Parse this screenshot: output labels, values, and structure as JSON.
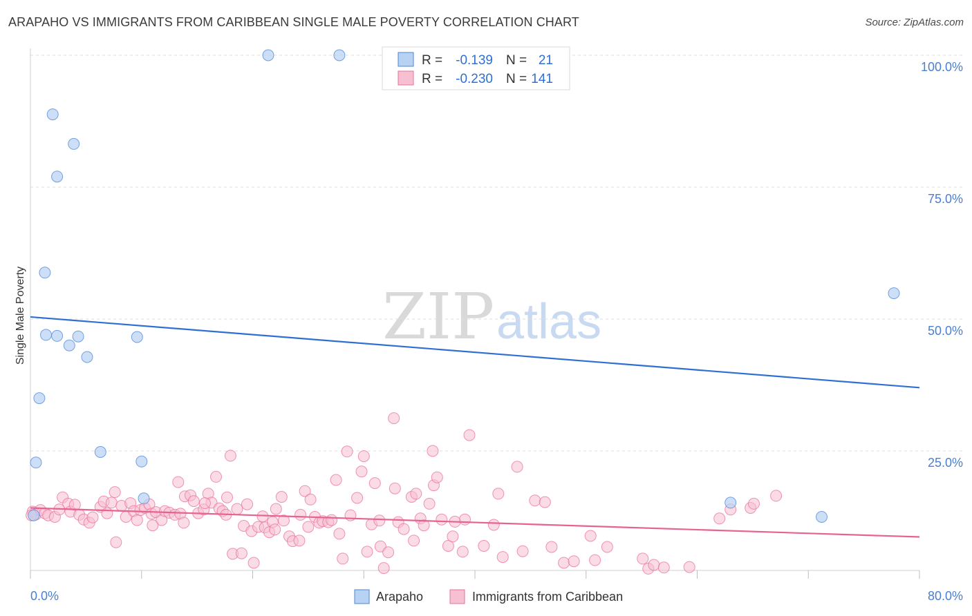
{
  "title": "ARAPAHO VS IMMIGRANTS FROM CARIBBEAN SINGLE MALE POVERTY CORRELATION CHART",
  "source": "Source: ZipAtlas.com",
  "watermark": {
    "zip": "ZIP",
    "atlas": "atlas"
  },
  "legend": {
    "rows": [
      {
        "r_label": "R =",
        "r_value": "-0.139",
        "n_label": "N =",
        "n_value": "21",
        "color": "#4a86d8"
      },
      {
        "r_label": "R =",
        "r_value": "-0.230",
        "n_label": "N =",
        "n_value": "141",
        "color": "#e9709a"
      }
    ]
  },
  "chart_data": {
    "type": "scatter",
    "title": "ARAPAHO VS IMMIGRANTS FROM CARIBBEAN SINGLE MALE POVERTY CORRELATION CHART",
    "xlabel": "",
    "ylabel": "Single Male Poverty",
    "xlim": [
      0,
      80
    ],
    "ylim": [
      0,
      100
    ],
    "x_tick_labels": [
      "0.0%",
      "80.0%"
    ],
    "y_ticks": [
      25,
      50,
      75,
      100
    ],
    "y_tick_labels": [
      "25.0%",
      "50.0%",
      "75.0%",
      "100.0%"
    ],
    "grid": true,
    "legend_position": "top-center",
    "series": [
      {
        "name": "Arapaho",
        "color": "#4a86d8",
        "fill": "#b8d2f3",
        "trend": {
          "x": [
            0,
            80
          ],
          "y": [
            50.4,
            37.0
          ]
        },
        "points": [
          [
            0.5,
            22.8
          ],
          [
            0.8,
            35.0
          ],
          [
            1.3,
            58.8
          ],
          [
            1.4,
            47.0
          ],
          [
            2.0,
            88.8
          ],
          [
            2.4,
            77.0
          ],
          [
            2.4,
            46.8
          ],
          [
            3.5,
            45.0
          ],
          [
            3.9,
            83.2
          ],
          [
            4.3,
            46.7
          ],
          [
            5.1,
            42.8
          ],
          [
            6.3,
            24.8
          ],
          [
            9.6,
            46.6
          ],
          [
            10.0,
            23.0
          ],
          [
            10.2,
            16.0
          ],
          [
            21.4,
            100.0
          ],
          [
            27.8,
            100.0
          ],
          [
            63.0,
            15.2
          ],
          [
            71.2,
            12.5
          ],
          [
            77.7,
            54.9
          ],
          [
            0.3,
            12.8
          ]
        ]
      },
      {
        "name": "Immigrants from Caribbean",
        "color": "#e9709a",
        "fill": "#f7c0d2",
        "trend": {
          "x": [
            0,
            80
          ],
          "y": [
            14.2,
            8.7
          ]
        },
        "points": [
          [
            0.2,
            13.5
          ],
          [
            0.5,
            13.0
          ],
          [
            0.9,
            13.8
          ],
          [
            1.3,
            13.2
          ],
          [
            1.6,
            12.8
          ],
          [
            2.2,
            12.5
          ],
          [
            2.6,
            13.9
          ],
          [
            2.9,
            16.2
          ],
          [
            3.4,
            15.0
          ],
          [
            3.6,
            13.5
          ],
          [
            4.0,
            14.8
          ],
          [
            4.4,
            12.9
          ],
          [
            4.8,
            12.0
          ],
          [
            5.3,
            11.4
          ],
          [
            5.6,
            12.4
          ],
          [
            6.3,
            14.4
          ],
          [
            6.6,
            15.4
          ],
          [
            6.9,
            13.2
          ],
          [
            7.3,
            15.2
          ],
          [
            7.6,
            17.2
          ],
          [
            7.7,
            7.7
          ],
          [
            8.2,
            14.6
          ],
          [
            8.6,
            12.5
          ],
          [
            9.0,
            15.1
          ],
          [
            9.3,
            13.6
          ],
          [
            9.6,
            11.9
          ],
          [
            9.9,
            13.8
          ],
          [
            10.3,
            14.2
          ],
          [
            10.7,
            14.9
          ],
          [
            10.9,
            13.1
          ],
          [
            11.3,
            13.4
          ],
          [
            11.8,
            11.9
          ],
          [
            12.1,
            13.6
          ],
          [
            12.5,
            13.3
          ],
          [
            13.0,
            12.9
          ],
          [
            13.3,
            19.1
          ],
          [
            13.5,
            13.1
          ],
          [
            13.9,
            16.4
          ],
          [
            14.4,
            16.6
          ],
          [
            14.7,
            15.5
          ],
          [
            15.1,
            13.2
          ],
          [
            15.6,
            13.9
          ],
          [
            16.0,
            16.9
          ],
          [
            16.3,
            15.2
          ],
          [
            16.7,
            20.1
          ],
          [
            17.0,
            14.1
          ],
          [
            17.3,
            13.6
          ],
          [
            17.7,
            16.2
          ],
          [
            18.0,
            24.1
          ],
          [
            18.2,
            5.5
          ],
          [
            18.6,
            14.0
          ],
          [
            19.0,
            5.6
          ],
          [
            19.2,
            10.8
          ],
          [
            19.5,
            14.9
          ],
          [
            19.9,
            9.8
          ],
          [
            20.1,
            3.8
          ],
          [
            20.5,
            10.6
          ],
          [
            20.9,
            12.6
          ],
          [
            21.1,
            10.5
          ],
          [
            21.5,
            9.6
          ],
          [
            21.8,
            11.5
          ],
          [
            22.0,
            10.1
          ],
          [
            22.6,
            16.3
          ],
          [
            22.8,
            11.8
          ],
          [
            23.3,
            8.8
          ],
          [
            23.6,
            7.9
          ],
          [
            24.3,
            12.9
          ],
          [
            24.7,
            17.4
          ],
          [
            25.0,
            10.6
          ],
          [
            25.2,
            15.8
          ],
          [
            25.6,
            12.5
          ],
          [
            26.0,
            11.4
          ],
          [
            26.3,
            11.7
          ],
          [
            26.8,
            11.5
          ],
          [
            27.1,
            11.9
          ],
          [
            27.5,
            19.5
          ],
          [
            27.8,
            9.3
          ],
          [
            28.1,
            4.6
          ],
          [
            28.5,
            24.9
          ],
          [
            28.8,
            12.8
          ],
          [
            29.4,
            16.1
          ],
          [
            30.0,
            24.0
          ],
          [
            30.3,
            5.9
          ],
          [
            30.7,
            11.1
          ],
          [
            31.0,
            18.9
          ],
          [
            31.5,
            6.9
          ],
          [
            31.8,
            2.8
          ],
          [
            32.2,
            5.8
          ],
          [
            32.7,
            31.2
          ],
          [
            32.8,
            17.9
          ],
          [
            33.1,
            11.5
          ],
          [
            34.3,
            16.3
          ],
          [
            34.5,
            8.0
          ],
          [
            34.7,
            16.9
          ],
          [
            35.1,
            12.2
          ],
          [
            35.4,
            10.9
          ],
          [
            35.9,
            15.0
          ],
          [
            36.2,
            25.0
          ],
          [
            36.3,
            18.5
          ],
          [
            36.6,
            20.0
          ],
          [
            37.0,
            12.0
          ],
          [
            37.6,
            7.0
          ],
          [
            38.0,
            8.8
          ],
          [
            38.9,
            5.9
          ],
          [
            39.1,
            12.0
          ],
          [
            39.5,
            28.0
          ],
          [
            40.8,
            7.0
          ],
          [
            41.7,
            11.0
          ],
          [
            42.5,
            4.9
          ],
          [
            43.8,
            22.0
          ],
          [
            44.3,
            6.0
          ],
          [
            45.4,
            15.6
          ],
          [
            46.9,
            6.8
          ],
          [
            48.0,
            3.8
          ],
          [
            48.9,
            4.1
          ],
          [
            50.4,
            8.9
          ],
          [
            50.8,
            4.3
          ],
          [
            51.9,
            6.8
          ],
          [
            55.1,
            4.6
          ],
          [
            55.6,
            2.7
          ],
          [
            56.1,
            3.4
          ],
          [
            57.0,
            2.9
          ],
          [
            59.3,
            3.0
          ],
          [
            62.0,
            12.2
          ],
          [
            63.0,
            13.9
          ],
          [
            64.8,
            14.2
          ],
          [
            65.1,
            15.0
          ],
          [
            67.1,
            16.5
          ],
          [
            11.0,
            10.9
          ],
          [
            13.8,
            11.4
          ],
          [
            15.7,
            15.1
          ],
          [
            17.6,
            12.9
          ],
          [
            22.1,
            14.0
          ],
          [
            24.2,
            8.0
          ],
          [
            29.8,
            21.1
          ],
          [
            31.4,
            11.8
          ],
          [
            33.6,
            10.2
          ],
          [
            38.2,
            11.6
          ],
          [
            42.1,
            16.9
          ],
          [
            46.3,
            15.3
          ],
          [
            0.1,
            12.8
          ]
        ]
      }
    ]
  },
  "bottom_legend": [
    {
      "label": "Arapaho",
      "color": "#4a86d8",
      "fill": "#b8d2f3"
    },
    {
      "label": "Immigrants from Caribbean",
      "color": "#e9709a",
      "fill": "#f7c0d2"
    }
  ]
}
